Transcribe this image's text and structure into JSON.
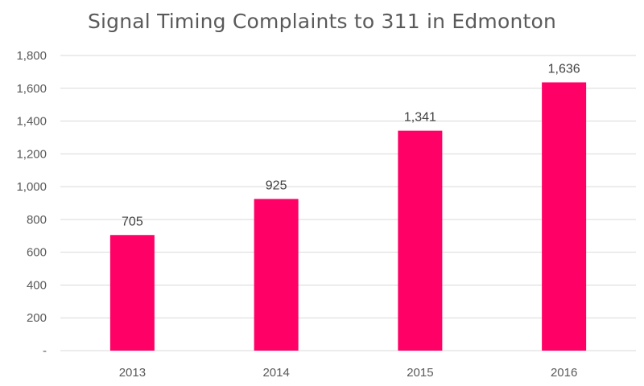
{
  "chart_data": {
    "type": "bar",
    "title": "Signal Timing Complaints to 311 in Edmonton",
    "categories": [
      "2013",
      "2014",
      "2015",
      "2016"
    ],
    "values": [
      705,
      925,
      1341,
      1636
    ],
    "data_labels": [
      "705",
      "925",
      "1,341",
      "1,636"
    ],
    "xlabel": "",
    "ylabel": "",
    "ylim": [
      0,
      1800
    ],
    "y_ticks": [
      0,
      200,
      400,
      600,
      800,
      1000,
      1200,
      1400,
      1600,
      1800
    ],
    "y_tick_labels": [
      "-",
      "200",
      "400",
      "600",
      "800",
      "1,000",
      "1,200",
      "1,400",
      "1,600",
      "1,800"
    ],
    "grid": true,
    "legend": "none",
    "bar_color": "#ff0066",
    "grid_color": "#d9d9d9"
  }
}
